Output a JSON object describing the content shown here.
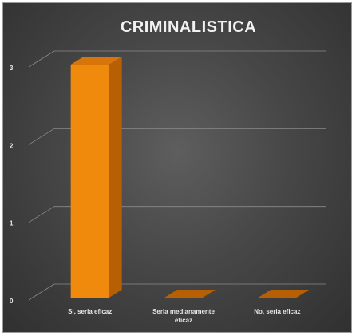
{
  "chart_data": {
    "type": "bar",
    "title": "CRIMINALISTICA",
    "categories": [
      [
        "Si, seria eficaz"
      ],
      [
        "Seria medianamente",
        "eficaz"
      ],
      [
        "No, seria eficaz"
      ]
    ],
    "values": [
      3,
      0,
      0
    ],
    "value_labels": [
      "",
      "-",
      "-"
    ],
    "y_ticks": [
      "0",
      "1",
      "2",
      "3"
    ],
    "ylim": [
      0,
      3
    ],
    "grid": true,
    "legend": "none",
    "bar_color": "#f08a0c",
    "bar_side_color": "#b65f04",
    "bar_top_color": "#d8750a",
    "background_color": "#474747"
  }
}
